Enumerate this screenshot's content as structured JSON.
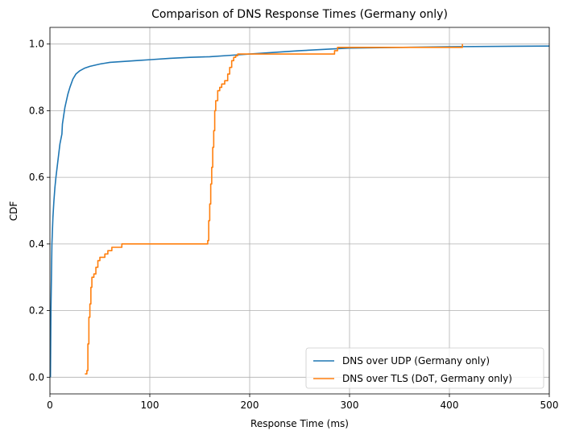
{
  "chart_data": {
    "type": "line",
    "title": "Comparison of DNS Response Times (Germany only)",
    "xlabel": "Response Time (ms)",
    "ylabel": "CDF",
    "xlim": [
      0,
      500
    ],
    "ylim": [
      -0.05,
      1.05
    ],
    "xticks": [
      0,
      100,
      200,
      300,
      400,
      500
    ],
    "yticks": [
      0.0,
      0.2,
      0.4,
      0.6,
      0.8,
      1.0
    ],
    "xtick_labels": [
      "0",
      "100",
      "200",
      "300",
      "400",
      "500"
    ],
    "ytick_labels": [
      "0.0",
      "0.2",
      "0.4",
      "0.6",
      "0.8",
      "1.0"
    ],
    "grid": true,
    "legend_position": "bottom-right",
    "series": [
      {
        "name": "DNS over UDP (Germany only)",
        "color": "#1f77b4",
        "step": false,
        "x": [
          0.5,
          1,
          2,
          3,
          4,
          5,
          6,
          8,
          10,
          12,
          12.5,
          13,
          15,
          18,
          20,
          23,
          26,
          30,
          35,
          40,
          50,
          60,
          75,
          90,
          100,
          120,
          140,
          160,
          180,
          200,
          250,
          280,
          300,
          400,
          500
        ],
        "y": [
          0.0,
          0.2,
          0.4,
          0.48,
          0.53,
          0.57,
          0.6,
          0.65,
          0.7,
          0.73,
          0.76,
          0.77,
          0.81,
          0.85,
          0.87,
          0.895,
          0.91,
          0.92,
          0.928,
          0.933,
          0.94,
          0.945,
          0.948,
          0.951,
          0.953,
          0.957,
          0.96,
          0.962,
          0.966,
          0.97,
          0.98,
          0.985,
          0.988,
          0.992,
          0.994
        ]
      },
      {
        "name": "DNS over TLS (DoT, Germany only)",
        "color": "#ff7f0e",
        "step": true,
        "x": [
          35,
          37,
          38,
          39,
          40,
          41,
          42,
          44,
          46,
          48,
          50,
          52,
          55,
          58,
          62,
          67,
          72,
          158,
          159,
          160,
          161,
          162,
          163,
          164,
          165,
          166,
          168,
          170,
          172,
          175,
          178,
          180,
          182,
          184,
          186,
          188,
          195,
          285,
          288,
          330,
          412,
          413
        ],
        "y": [
          0.01,
          0.02,
          0.1,
          0.18,
          0.22,
          0.27,
          0.3,
          0.31,
          0.33,
          0.35,
          0.36,
          0.36,
          0.37,
          0.38,
          0.39,
          0.39,
          0.4,
          0.41,
          0.47,
          0.52,
          0.58,
          0.63,
          0.69,
          0.74,
          0.8,
          0.83,
          0.86,
          0.87,
          0.88,
          0.89,
          0.91,
          0.93,
          0.95,
          0.96,
          0.965,
          0.97,
          0.97,
          0.98,
          0.99,
          0.99,
          0.99,
          1.0
        ]
      }
    ]
  }
}
